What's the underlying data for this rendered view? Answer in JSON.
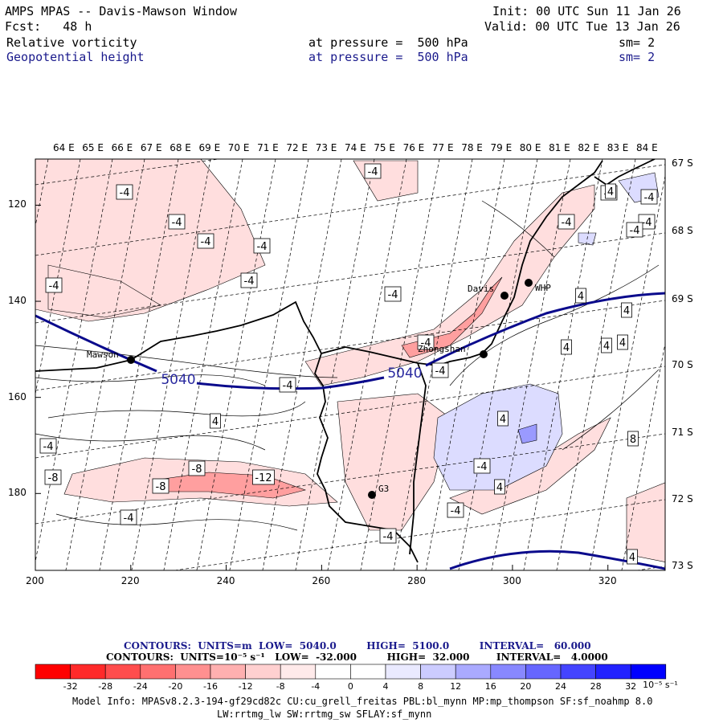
{
  "header": {
    "title": "AMPS MPAS -- Davis-Mawson Window",
    "fcst": "Fcst:   48 h",
    "init": "Init: 00 UTC Sun 11 Jan 26",
    "valid": "Valid: 00 UTC Tue 13 Jan 26",
    "field1_name": "Relative vorticity",
    "field1_level": "at pressure =  500 hPa",
    "field1_sm": "sm= 2",
    "field2_name": "Geopotential height",
    "field2_level": "at pressure =  500 hPa",
    "field2_sm": "sm= 2"
  },
  "map": {
    "lon_labels": [
      "64 E",
      "65 E",
      "66 E",
      "67 E",
      "68 E",
      "69 E",
      "70 E",
      "71 E",
      "72 E",
      "73 E",
      "74 E",
      "75 E",
      "76 E",
      "77 E",
      "78 E",
      "79 E",
      "80 E",
      "81 E",
      "82 E",
      "83 E",
      "84 E"
    ],
    "lat_labels": [
      "67 S",
      "68 S",
      "69 S",
      "70 S",
      "71 S",
      "72 S",
      "73 S"
    ],
    "x_ticks": [
      "200",
      "220",
      "240",
      "260",
      "280",
      "300",
      "320"
    ],
    "y_ticks": [
      "120",
      "140",
      "160",
      "180"
    ],
    "stations": [
      {
        "name": "Mawson"
      },
      {
        "name": "Davis"
      },
      {
        "name": "WHP"
      },
      {
        "name": "Zhongshan"
      },
      {
        "name": "G3"
      }
    ],
    "height_labels": [
      "5040",
      "5040"
    ],
    "vorticity_labels": [
      "-4",
      "-4",
      "-4",
      "-4",
      "-4",
      "-4",
      "-4",
      "-4",
      "-4",
      "-4",
      "-4",
      "-4",
      "-4",
      "-8",
      "-4",
      "-4",
      "-4",
      "-4",
      "-4",
      "-8",
      "-8",
      "-12",
      "-4",
      "-4",
      "-4",
      "4",
      "4",
      "4",
      "4",
      "4",
      "4",
      "8",
      "4",
      "4",
      "4",
      "4"
    ]
  },
  "footer": {
    "contours1": "CONTOURS:  UNITS=m  LOW=  5040.0         HIGH=  5100.0         INTERVAL=   60.000",
    "contours2": "CONTOURS:  UNITS=10⁻⁵ s⁻¹   LOW=  -32.000         HIGH=  32.000        INTERVAL=   4.0000",
    "colorbar_ticks": [
      "-32",
      "-28",
      "-24",
      "-20",
      "-16",
      "-12",
      "-8",
      "-4",
      "0",
      "4",
      "8",
      "12",
      "16",
      "20",
      "24",
      "28",
      "32"
    ],
    "colorbar_units": "10⁻⁵ s⁻¹",
    "colorbar_colors": [
      "#ff0000",
      "#ff2a2a",
      "#ff4d4d",
      "#ff7070",
      "#ff9090",
      "#ffb0b0",
      "#ffd0d0",
      "#ffeaea",
      "#ffffff",
      "#ffffff",
      "#eaeaff",
      "#ccccff",
      "#aaaaff",
      "#8888ff",
      "#6666ff",
      "#4444ff",
      "#2222ff",
      "#0000ff"
    ],
    "model_info1": "Model Info: MPASv8.2.3-194-gf29cd82c CU:cu_grell_freitas PBL:bl_mynn MP:mp_thompson SF:sf_noahmp 8.0",
    "model_info2": "LW:rrtmg_lw SW:rrtmg_sw SFLAY:sf_mynn"
  }
}
